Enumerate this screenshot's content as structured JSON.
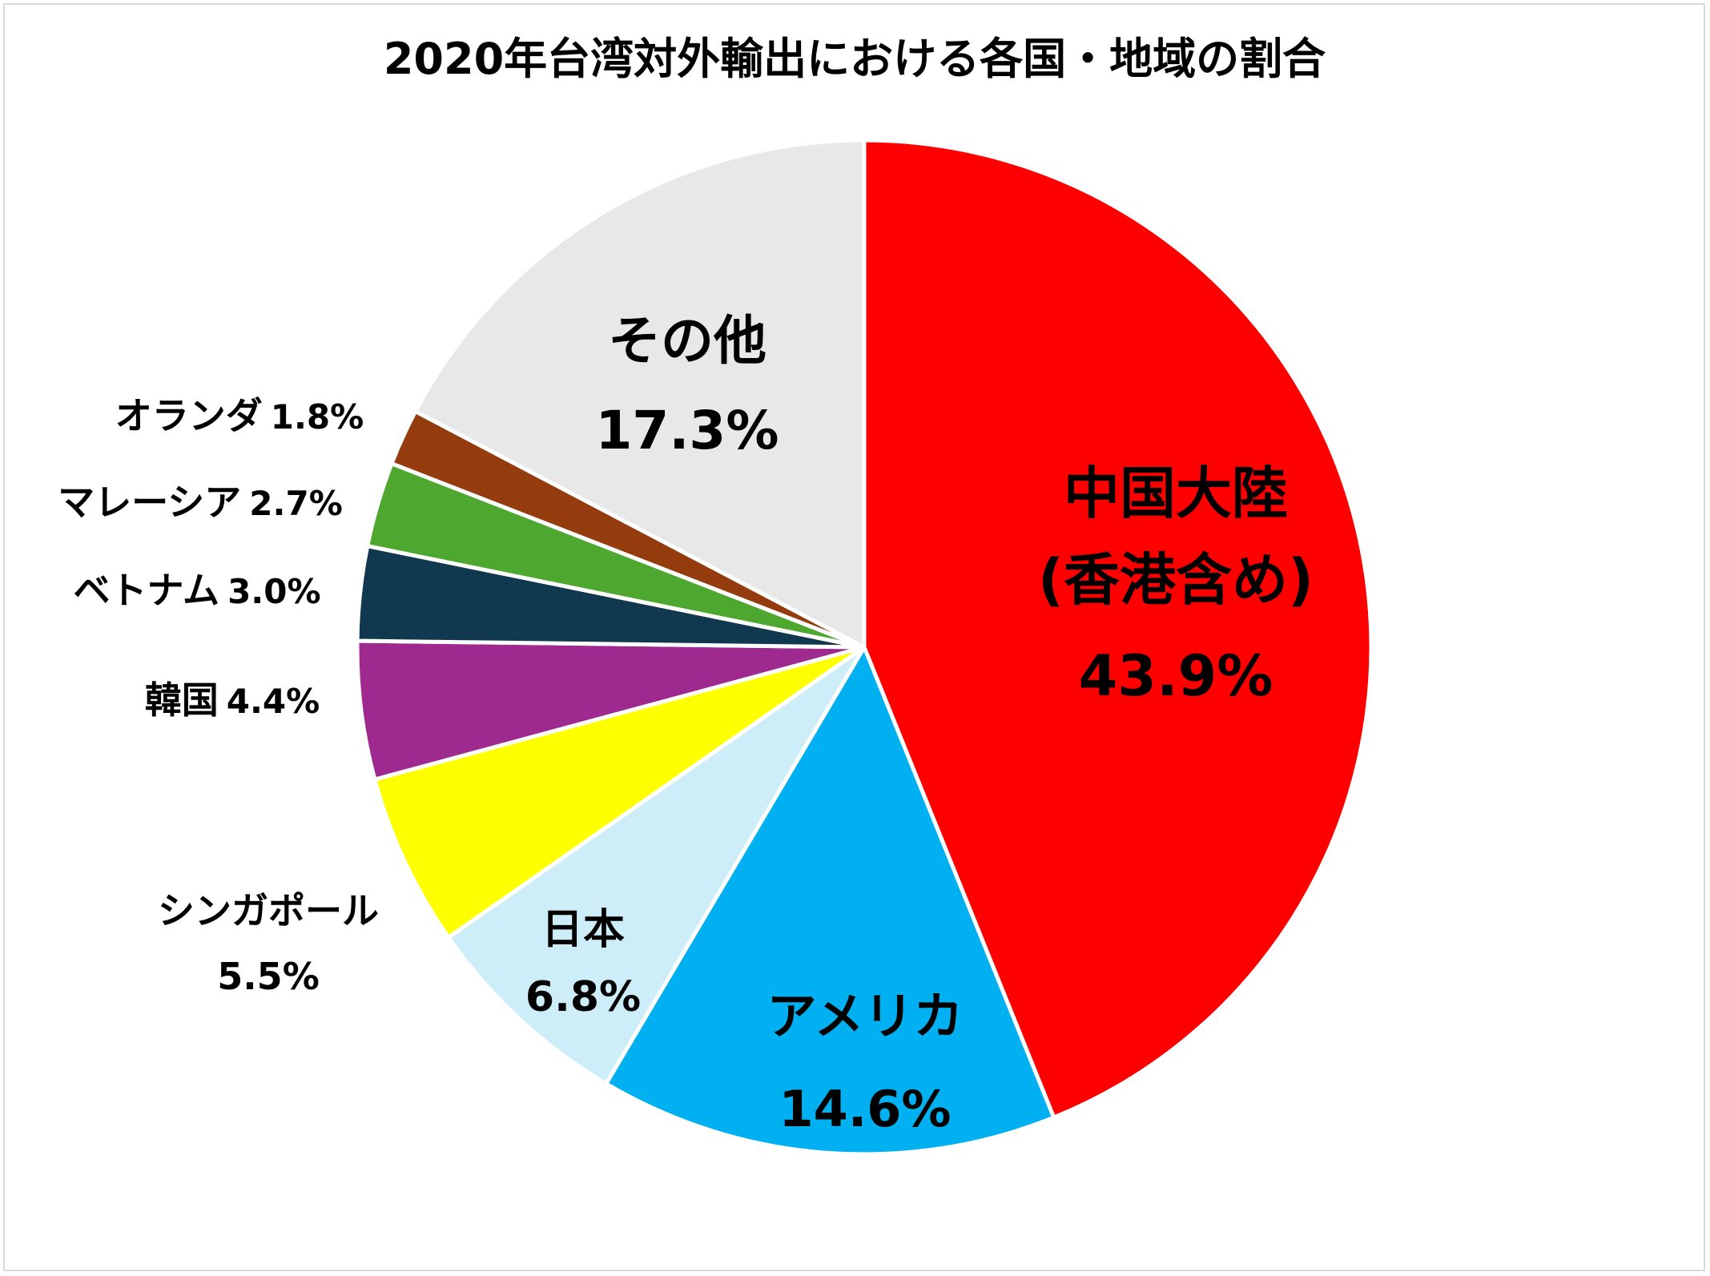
{
  "chart_data": {
    "type": "pie",
    "title": "2020年台湾対外輸出における各国・地域の割合",
    "start_angle_deg": 0,
    "direction": "clockwise",
    "unit": "%",
    "slices": [
      {
        "name": "中国大陸",
        "name_line2": "(香港含め)",
        "value": 43.9,
        "value_label": "43.9%",
        "color": "#ff0000"
      },
      {
        "name": "アメリカ",
        "value": 14.6,
        "value_label": "14.6%",
        "color": "#00b0f0"
      },
      {
        "name": "日本",
        "value": 6.8,
        "value_label": "6.8%",
        "color": "#cdeef9"
      },
      {
        "name": "シンガポール",
        "value": 5.5,
        "value_label": "5.5%",
        "color": "#ffff00"
      },
      {
        "name": "韓国",
        "value": 4.4,
        "value_label": "4.4%",
        "color": "#9e2a8f"
      },
      {
        "name": "ベトナム",
        "value": 3.0,
        "value_label": "3.0%",
        "color": "#10384f"
      },
      {
        "name": "マレーシア",
        "value": 2.7,
        "value_label": "2.7%",
        "color": "#4ea72e"
      },
      {
        "name": "オランダ",
        "value": 1.8,
        "value_label": "1.8%",
        "color": "#943c0d"
      },
      {
        "name": "その他",
        "value": 17.3,
        "value_label": "17.3%",
        "color": "#e8e8e8"
      }
    ]
  }
}
